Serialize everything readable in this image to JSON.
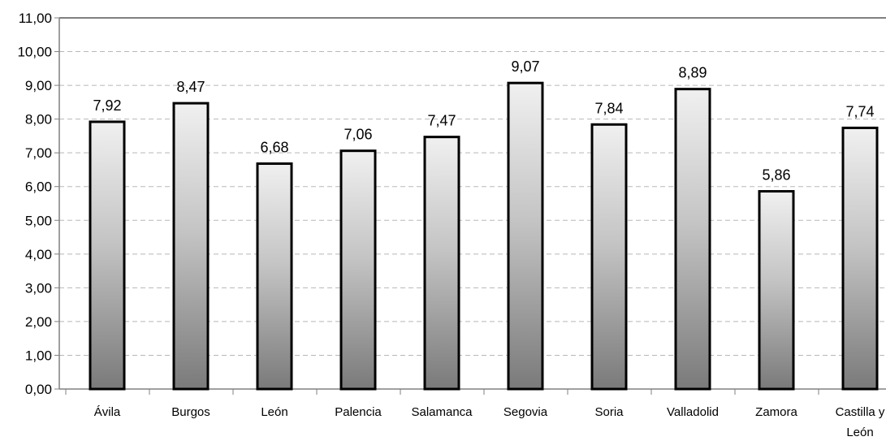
{
  "chart_data": {
    "type": "bar",
    "categories": [
      "Ávila",
      "Burgos",
      "León",
      "Palencia",
      "Salamanca",
      "Segovia",
      "Soria",
      "Valladolid",
      "Zamora",
      "Castilla y León"
    ],
    "category_lines": [
      [
        "Ávila"
      ],
      [
        "Burgos"
      ],
      [
        "León"
      ],
      [
        "Palencia"
      ],
      [
        "Salamanca"
      ],
      [
        "Segovia"
      ],
      [
        "Soria"
      ],
      [
        "Valladolid"
      ],
      [
        "Zamora"
      ],
      [
        "Castilla y",
        "León"
      ]
    ],
    "values": [
      7.92,
      8.47,
      6.68,
      7.06,
      7.47,
      9.07,
      7.84,
      8.89,
      5.86,
      7.74
    ],
    "data_labels": [
      "7,92",
      "8,47",
      "6,68",
      "7,06",
      "7,47",
      "9,07",
      "7,84",
      "8,89",
      "5,86",
      "7,74"
    ],
    "yticks": [
      "0,00",
      "1,00",
      "2,00",
      "3,00",
      "4,00",
      "5,00",
      "6,00",
      "7,00",
      "8,00",
      "9,00",
      "10,00",
      "11,00"
    ],
    "ylim": [
      0,
      11
    ],
    "grid": "horizontal dashed",
    "legend": "none",
    "title": "",
    "xlabel": "",
    "ylabel": "",
    "colors": {
      "bar_light": "#f0f0f0",
      "bar_mid": "#c4c4c4",
      "bar_dark": "#7a7a7a",
      "bar_edge": "#000000",
      "grid": "#b8b8b8",
      "axis": "#808080"
    }
  }
}
